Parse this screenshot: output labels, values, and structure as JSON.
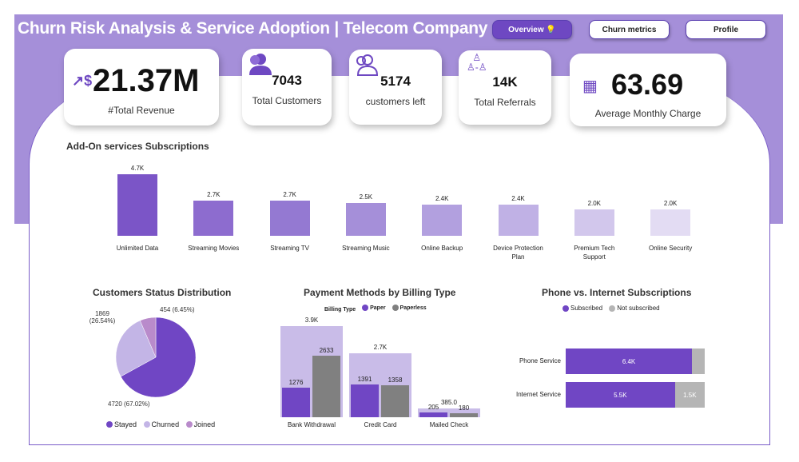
{
  "header": {
    "title": "Churn Risk Analysis & Service Adoption | Telecom Company",
    "nav": [
      {
        "label": "Overview 💡",
        "active": true
      },
      {
        "label": "Churn metrics"
      },
      {
        "label": "Profile"
      }
    ]
  },
  "kpis": [
    {
      "value": "21.37M",
      "label": "#Total Revenue",
      "icon": "revenue-chart-icon"
    },
    {
      "value": "7043",
      "label": "Total Customers",
      "icon": "users-icon"
    },
    {
      "value": "5174",
      "label": "customers left",
      "icon": "users-outline-icon"
    },
    {
      "value": "14K",
      "label": "Total Referrals",
      "icon": "referral-network-icon"
    },
    {
      "value": "63.69",
      "label": "Average Monthly Charge",
      "icon": "calendar-money-icon"
    }
  ],
  "chart_data": [
    {
      "type": "bar",
      "title": "Add-On services Subscriptions",
      "categories": [
        "Unlimited Data",
        "Streaming Movies",
        "Streaming TV",
        "Streaming Music",
        "Online Backup",
        "Device Protection Plan",
        "Premium Tech Support",
        "Online Security"
      ],
      "values": [
        4700,
        2700,
        2700,
        2500,
        2400,
        2400,
        2000,
        2000
      ],
      "data_labels": [
        "4.7K",
        "2.7K",
        "2.7K",
        "2.5K",
        "2.4K",
        "2.4K",
        "2.0K",
        "2.0K"
      ],
      "colors": [
        "#7B55C7",
        "#8D6CCF",
        "#9479D2",
        "#A58FD9",
        "#B2A0DF",
        "#C0B1E5",
        "#D2C7EC",
        "#E3DCF3"
      ]
    },
    {
      "type": "pie",
      "title": "Customers Status Distribution",
      "slices": [
        {
          "name": "Stayed",
          "value": 4720,
          "label": "4720 (67.02%)",
          "color": "#7046C4"
        },
        {
          "name": "Churned",
          "value": 1869,
          "label": "1869 (26.54%)",
          "color": "#C3B5E6"
        },
        {
          "name": "Joined",
          "value": 454,
          "label": "454 (6.45%)",
          "color": "#B98BCB"
        }
      ],
      "legend": "bottom"
    },
    {
      "type": "bar",
      "title": "Payment Methods by Billing Type",
      "legend_title": "Billing Type",
      "categories": [
        "Bank Withdrawal",
        "Credit Card",
        "Mailed Check"
      ],
      "totals": [
        3909,
        2749,
        385
      ],
      "total_labels": [
        "3.9K",
        "2.7K",
        "385.0"
      ],
      "series": [
        {
          "name": "Paper",
          "values": [
            1276,
            1391,
            205
          ],
          "color": "#7046C4"
        },
        {
          "name": "Paperless",
          "values": [
            2633,
            1358,
            180
          ],
          "color": "#808080"
        }
      ],
      "total_color": "#C9BCE8",
      "legend": "top"
    },
    {
      "type": "bar",
      "orientation": "horizontal",
      "stacked": true,
      "title": "Phone vs. Internet Subscriptions",
      "categories": [
        "Phone Service",
        "Internet Service"
      ],
      "series": [
        {
          "name": "Subscribed",
          "values": [
            6400,
            5500
          ],
          "labels": [
            "6.4K",
            "5.5K"
          ],
          "color": "#7046C4"
        },
        {
          "name": "Not subscribed",
          "values": [
            643,
            1500
          ],
          "labels": [
            "",
            "1.5K"
          ],
          "color": "#B5B5B5"
        }
      ],
      "legend": "top"
    }
  ]
}
